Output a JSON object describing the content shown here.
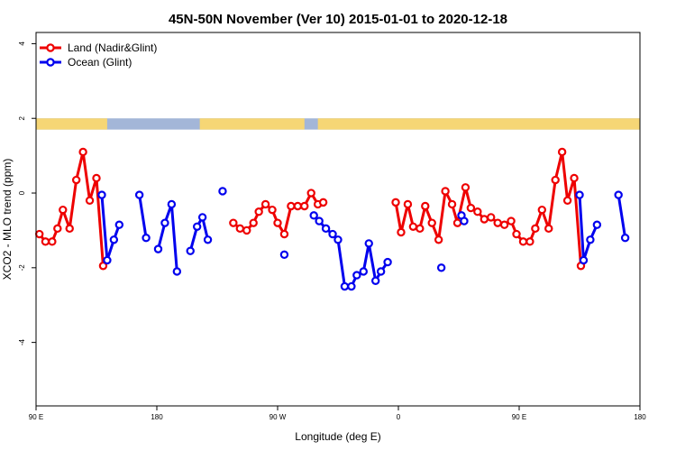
{
  "chart_data": {
    "type": "line",
    "title": "45N-50N November (Ver 10)   2015-01-01 to 2020-12-18",
    "xlabel": "Longitude (deg E)",
    "ylabel": "XCO2 - MLO trend (ppm)",
    "x_tick_labels": [
      "90 E",
      "180",
      "90 W",
      "0",
      "90 E",
      "180"
    ],
    "x_tick_values": [
      90,
      180,
      270,
      360,
      450,
      540
    ],
    "xlim": [
      90,
      540
    ],
    "y_tick_labels": [
      "-4",
      "-2",
      "0",
      "2",
      "4"
    ],
    "y_tick_values": [
      -4,
      -2,
      0,
      2,
      4
    ],
    "ylim": [
      -5.7,
      4.3
    ],
    "grid": false,
    "legend_position": "top-left",
    "land_ocean_band": {
      "y_range": [
        1.7,
        2.0
      ],
      "land_color": "#f6d675",
      "ocean_color": "#a3b6d8",
      "land_segments": [
        [
          90,
          143
        ],
        [
          212,
          290
        ],
        [
          300,
          560
        ]
      ]
    },
    "series": [
      {
        "name": "Land (Nadir&Glint)",
        "color": "#ee0000",
        "segments": [
          [
            [
              92.5,
              -1.1
            ],
            [
              97,
              -1.3
            ],
            [
              102,
              -1.3
            ],
            [
              106,
              -0.95
            ],
            [
              110,
              -0.45
            ],
            [
              115,
              -0.95
            ],
            [
              120,
              0.35
            ],
            [
              125,
              1.1
            ],
            [
              130,
              -0.2
            ],
            [
              135,
              0.4
            ],
            [
              140,
              -1.95
            ]
          ],
          [
            [
              237,
              -0.8
            ],
            [
              242,
              -0.95
            ],
            [
              247,
              -1.0
            ],
            [
              252,
              -0.8
            ],
            [
              256,
              -0.5
            ],
            [
              261,
              -0.3
            ],
            [
              266,
              -0.45
            ],
            [
              270,
              -0.8
            ],
            [
              275,
              -1.1
            ],
            [
              280,
              -0.35
            ],
            [
              285,
              -0.35
            ],
            [
              290,
              -0.35
            ],
            [
              295,
              0
            ],
            [
              300,
              -0.3
            ],
            [
              304,
              -0.25
            ]
          ],
          [
            [
              358,
              -0.25
            ],
            [
              362,
              -1.05
            ],
            [
              367,
              -0.3
            ],
            [
              371,
              -0.9
            ],
            [
              376,
              -0.95
            ],
            [
              380,
              -0.35
            ],
            [
              385,
              -0.8
            ],
            [
              390,
              -1.25
            ],
            [
              395,
              0.05
            ],
            [
              400,
              -0.3
            ],
            [
              404,
              -0.8
            ],
            [
              410,
              0.15
            ],
            [
              414,
              -0.4
            ],
            [
              419,
              -0.5
            ],
            [
              424,
              -0.7
            ],
            [
              429,
              -0.65
            ],
            [
              434,
              -0.8
            ],
            [
              439,
              -0.85
            ],
            [
              444,
              -0.75
            ],
            [
              448,
              -1.1
            ],
            [
              453,
              -1.3
            ],
            [
              458,
              -1.3
            ],
            [
              462,
              -0.95
            ],
            [
              467,
              -0.45
            ],
            [
              472,
              -0.95
            ],
            [
              477,
              0.35
            ],
            [
              482,
              1.1
            ],
            [
              486,
              -0.2
            ],
            [
              491,
              0.4
            ],
            [
              496,
              -1.95
            ]
          ]
        ]
      },
      {
        "name": "Ocean (Glint)",
        "color": "#0000ee",
        "segments": [
          [
            [
              139,
              -0.05
            ],
            [
              143,
              -1.8
            ],
            [
              148,
              -1.25
            ],
            [
              152,
              -0.85
            ]
          ],
          [
            [
              167,
              -0.05
            ],
            [
              172,
              -1.2
            ]
          ],
          [
            [
              181,
              -1.5
            ],
            [
              186,
              -0.8
            ],
            [
              191,
              -0.3
            ],
            [
              195,
              -2.1
            ]
          ],
          [
            [
              205,
              -1.55
            ],
            [
              210,
              -0.9
            ],
            [
              214,
              -0.65
            ],
            [
              218,
              -1.25
            ]
          ],
          [
            [
              229,
              0.05
            ]
          ],
          [
            [
              275,
              -1.65
            ]
          ],
          [
            [
              297,
              -0.6
            ],
            [
              301,
              -0.75
            ],
            [
              306,
              -0.95
            ],
            [
              311,
              -1.1
            ],
            [
              315,
              -1.25
            ],
            [
              320,
              -2.5
            ],
            [
              325,
              -2.5
            ],
            [
              329,
              -2.2
            ],
            [
              334,
              -2.1
            ],
            [
              338,
              -1.35
            ],
            [
              343,
              -2.35
            ],
            [
              347,
              -2.1
            ],
            [
              352,
              -1.85
            ]
          ],
          [
            [
              392,
              -2.0
            ]
          ],
          [
            [
              407,
              -0.6
            ],
            [
              409,
              -0.75
            ]
          ],
          [
            [
              495,
              -0.05
            ],
            [
              498,
              -1.8
            ],
            [
              503,
              -1.25
            ],
            [
              508,
              -0.85
            ]
          ],
          [
            [
              524,
              -0.05
            ],
            [
              529,
              -1.2
            ]
          ]
        ]
      }
    ]
  }
}
